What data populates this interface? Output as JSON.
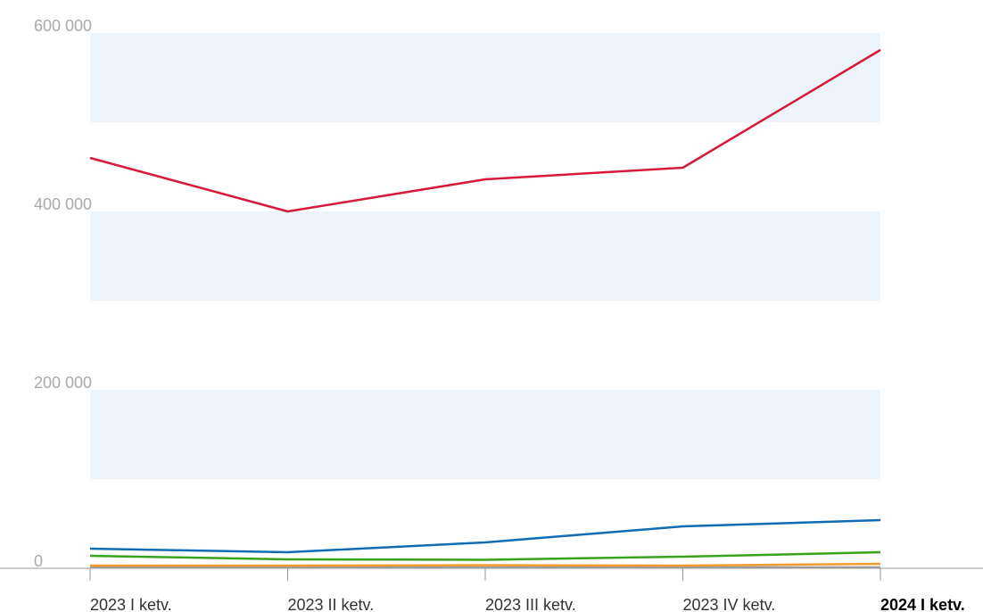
{
  "chart_data": {
    "type": "line",
    "categories": [
      "2023 I ketv.",
      "2023 II ketv.",
      "2023 III ketv.",
      "2023 IV ketv.",
      "2024 I ketv."
    ],
    "series": [
      {
        "color": "#d7193a",
        "values": [
          460000,
          400000,
          436000,
          449000,
          581000
        ]
      },
      {
        "color": "#0f6db5",
        "values": [
          22000,
          18000,
          29000,
          47000,
          54000
        ]
      },
      {
        "color": "#3aa31c",
        "values": [
          14000,
          10000,
          9500,
          13000,
          18000
        ]
      },
      {
        "color": "#f29a2e",
        "values": [
          3000,
          3000,
          3500,
          3000,
          5000
        ]
      },
      {
        "color": "#9a9a9a",
        "values": [
          1000,
          1000,
          1000,
          1000,
          1000
        ]
      }
    ],
    "ylim": [
      0,
      600000
    ],
    "yticks": [
      {
        "value": 0,
        "label": "0"
      },
      {
        "value": 200000,
        "label": "200 000"
      },
      {
        "value": 400000,
        "label": "400 000"
      },
      {
        "value": 600000,
        "label": "600 000"
      }
    ],
    "bands": true
  }
}
